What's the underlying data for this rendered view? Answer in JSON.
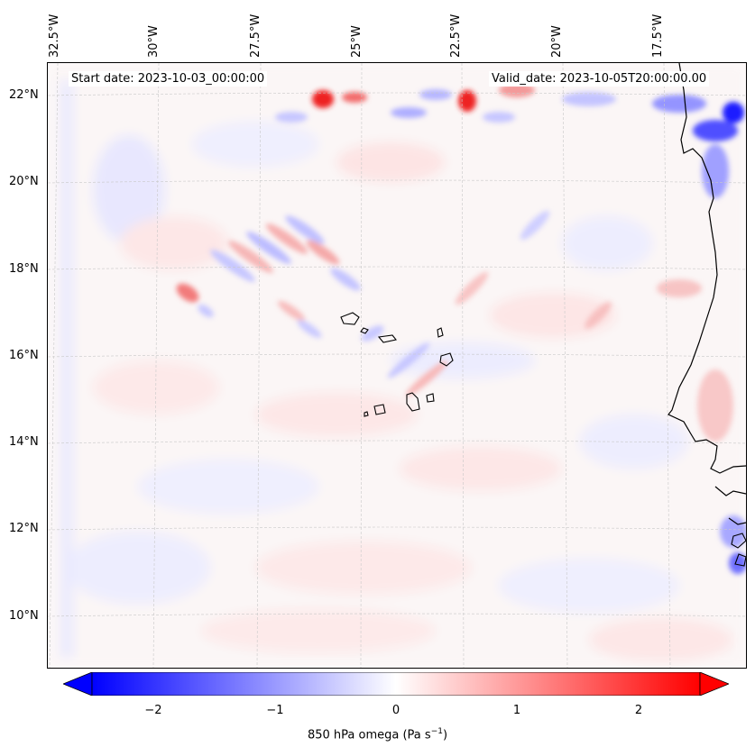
{
  "map": {
    "start_date": "Start date: 2023-10-03_00:00:00",
    "valid_date": "Valid_date: 2023-10-05T20:00:00.00",
    "lon_labels": [
      "32.5°W",
      "30°W",
      "27.5°W",
      "25°W",
      "22.5°W",
      "20°W",
      "17.5°W"
    ],
    "lat_labels": [
      "22°N",
      "20°N",
      "18°N",
      "16°N",
      "14°N",
      "12°N",
      "10°N"
    ],
    "variable": "850 hPa omega",
    "units": "Pa s",
    "units_exponent": "−1"
  },
  "colorbar": {
    "ticks": [
      "−2",
      "−1",
      "0",
      "1",
      "2"
    ],
    "tick_values": [
      -2,
      -1,
      0,
      1,
      2
    ],
    "range": [
      -2.5,
      2.5
    ],
    "colormap": "bwr",
    "color_low": "#0000ff",
    "color_mid": "#ffffff",
    "color_high": "#ff0000"
  }
}
